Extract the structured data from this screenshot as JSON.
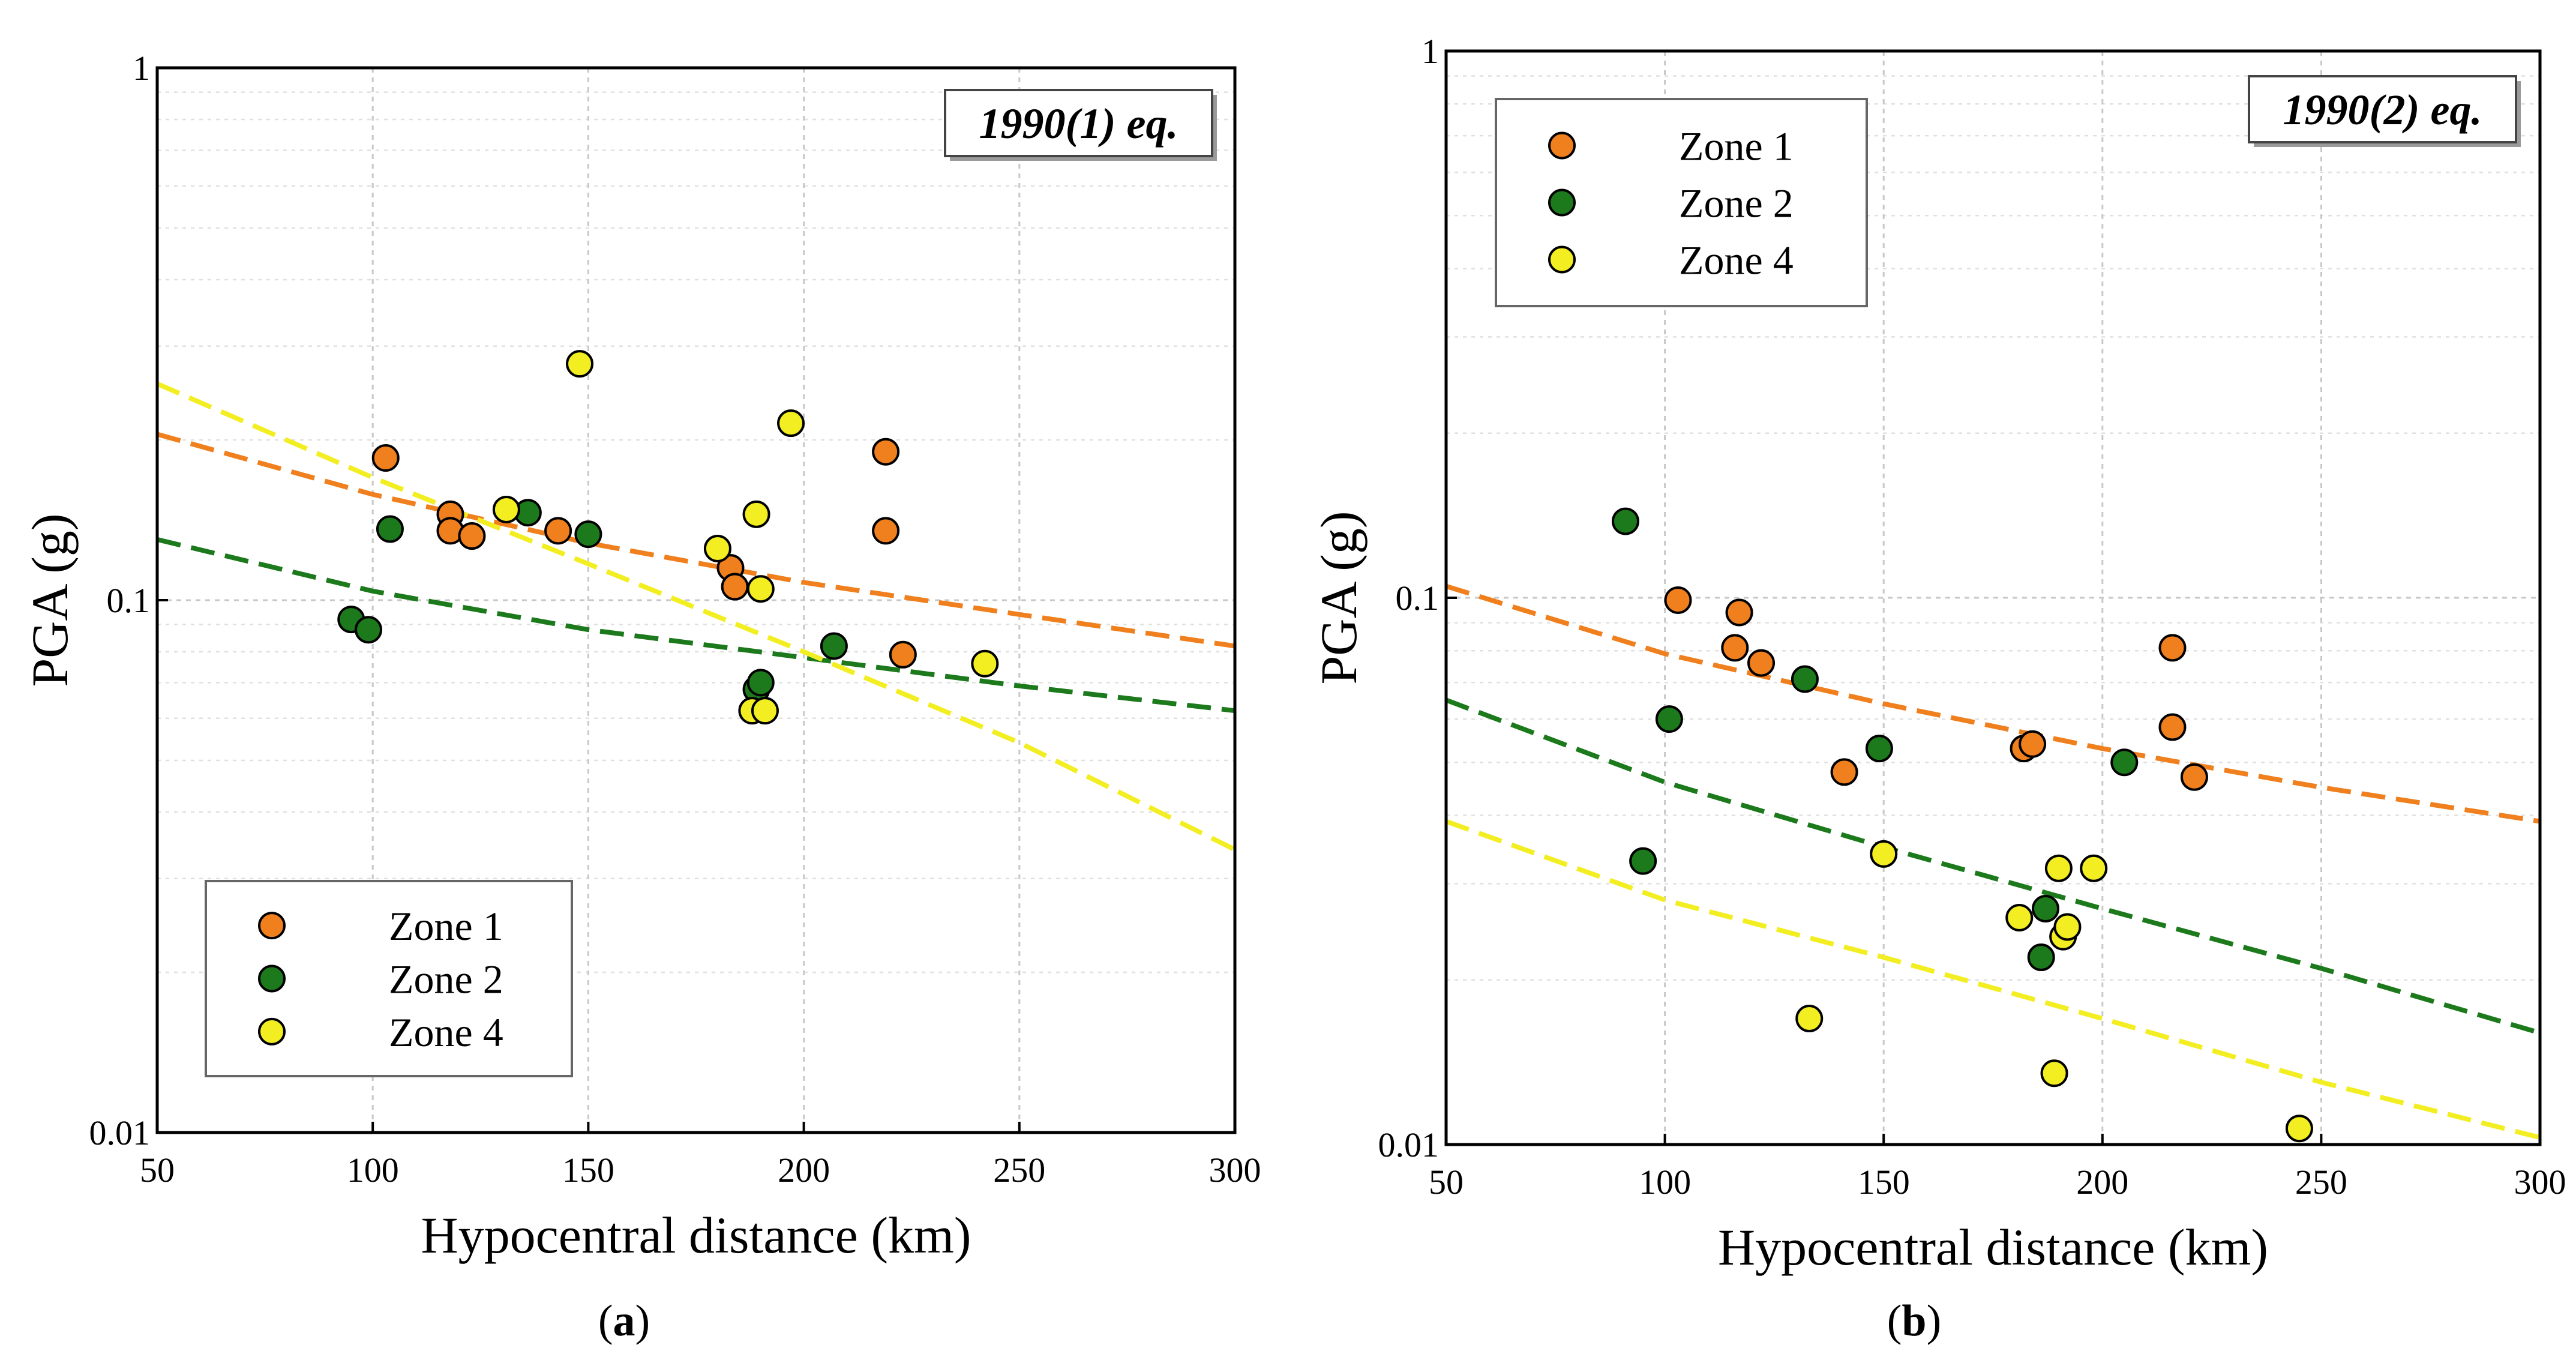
{
  "figure": {
    "panel_a_label": "(a)",
    "panel_b_label": "(b)"
  },
  "colors": {
    "zone1": "#F07F1E",
    "zone2": "#1C7A1C",
    "zone4": "#F2EE22"
  },
  "chart_data": [
    {
      "type": "scatter",
      "title": "1990(1) eq.",
      "xlabel": "Hypocentral distance (km)",
      "ylabel": "PGA (g)",
      "xlim": [
        50,
        300
      ],
      "ylim": [
        0.01,
        1
      ],
      "yscale": "log",
      "xticks": [
        "50",
        "100",
        "150",
        "200",
        "250",
        "300"
      ],
      "yticks": [
        "0.01",
        "0.1",
        "1"
      ],
      "legend_position": "bottom-left",
      "legend": [
        "Zone 1",
        "Zone 2",
        "Zone 4"
      ],
      "series": [
        {
          "name": "Zone 1",
          "kind": "points",
          "x": [
            103,
            118,
            118,
            123,
            143,
            183,
            184,
            219,
            219,
            223
          ],
          "y": [
            0.185,
            0.145,
            0.135,
            0.132,
            0.135,
            0.115,
            0.106,
            0.19,
            0.135,
            0.079
          ]
        },
        {
          "name": "Zone 2",
          "kind": "points",
          "x": [
            95,
            99,
            104,
            136,
            150,
            189,
            190,
            207
          ],
          "y": [
            0.092,
            0.088,
            0.136,
            0.146,
            0.133,
            0.068,
            0.07,
            0.082
          ]
        },
        {
          "name": "Zone 4",
          "kind": "points",
          "x": [
            131,
            148,
            180,
            188,
            189,
            190,
            191,
            197,
            242
          ],
          "y": [
            0.148,
            0.278,
            0.125,
            0.062,
            0.145,
            0.105,
            0.062,
            0.215,
            0.076
          ]
        },
        {
          "name": "Zone 1 fit",
          "kind": "line",
          "x": [
            50,
            100,
            150,
            200,
            250,
            300
          ],
          "y": [
            0.205,
            0.158,
            0.128,
            0.108,
            0.094,
            0.082
          ]
        },
        {
          "name": "Zone 2 fit",
          "kind": "line",
          "x": [
            50,
            100,
            150,
            200,
            250,
            300
          ],
          "y": [
            0.13,
            0.104,
            0.088,
            0.078,
            0.069,
            0.062
          ]
        },
        {
          "name": "Zone 4 fit",
          "kind": "line",
          "x": [
            50,
            100,
            150,
            200,
            250,
            300
          ],
          "y": [
            0.255,
            0.17,
            0.117,
            0.08,
            0.054,
            0.034
          ]
        }
      ]
    },
    {
      "type": "scatter",
      "title": "1990(2) eq.",
      "xlabel": "Hypocentral distance (km)",
      "ylabel": "PGA (g)",
      "xlim": [
        50,
        300
      ],
      "ylim": [
        0.01,
        1
      ],
      "yscale": "log",
      "xticks": [
        "50",
        "100",
        "150",
        "200",
        "250",
        "300"
      ],
      "yticks": [
        "0.01",
        "0.1",
        "1"
      ],
      "legend_position": "top-left",
      "legend": [
        "Zone 1",
        "Zone 2",
        "Zone 4"
      ],
      "series": [
        {
          "name": "Zone 1",
          "kind": "points",
          "x": [
            103,
            116,
            117,
            122,
            141,
            182,
            184,
            216,
            216,
            221
          ],
          "y": [
            0.099,
            0.081,
            0.094,
            0.076,
            0.048,
            0.053,
            0.054,
            0.081,
            0.058,
            0.047
          ]
        },
        {
          "name": "Zone 2",
          "kind": "points",
          "x": [
            91,
            95,
            101,
            132,
            149,
            186,
            187,
            205
          ],
          "y": [
            0.138,
            0.033,
            0.06,
            0.071,
            0.053,
            0.022,
            0.027,
            0.05
          ]
        },
        {
          "name": "Zone 4",
          "kind": "points",
          "x": [
            133,
            150,
            181,
            189,
            190,
            191,
            192,
            198,
            245
          ],
          "y": [
            0.017,
            0.034,
            0.026,
            0.0135,
            0.032,
            0.024,
            0.025,
            0.032,
            0.0107
          ]
        },
        {
          "name": "Zone 1 fit",
          "kind": "line",
          "x": [
            50,
            100,
            150,
            200,
            250,
            300
          ],
          "y": [
            0.105,
            0.079,
            0.064,
            0.053,
            0.045,
            0.039
          ]
        },
        {
          "name": "Zone 2 fit",
          "kind": "line",
          "x": [
            50,
            100,
            150,
            200,
            250,
            300
          ],
          "y": [
            0.065,
            0.046,
            0.035,
            0.027,
            0.021,
            0.016
          ]
        },
        {
          "name": "Zone 4 fit",
          "kind": "line",
          "x": [
            50,
            100,
            150,
            200,
            250,
            300
          ],
          "y": [
            0.039,
            0.028,
            0.022,
            0.017,
            0.013,
            0.0103
          ]
        }
      ]
    }
  ]
}
